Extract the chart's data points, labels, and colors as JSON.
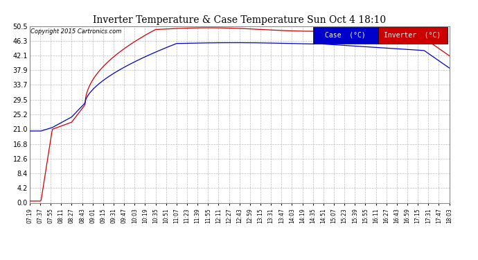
{
  "title": "Inverter Temperature & Case Temperature Sun Oct 4 18:10",
  "copyright": "Copyright 2015 Cartronics.com",
  "background_color": "#ffffff",
  "plot_bg_color": "#ffffff",
  "grid_color": "#aaaaaa",
  "ylim": [
    0.0,
    50.5
  ],
  "yticks": [
    0.0,
    4.2,
    8.4,
    12.6,
    16.8,
    21.0,
    25.2,
    29.5,
    33.7,
    37.9,
    42.1,
    46.3,
    50.5
  ],
  "case_color": "#0000cc",
  "inverter_color": "#cc0000",
  "legend_case_label": "Case  (°C)",
  "legend_inverter_label": "Inverter  (°C)",
  "legend_case_bg": "#0000cc",
  "legend_inverter_bg": "#cc0000",
  "xtick_labels": [
    "07:19",
    "07:37",
    "07:55",
    "08:11",
    "08:27",
    "08:43",
    "09:01",
    "09:15",
    "09:31",
    "09:47",
    "10:03",
    "10:19",
    "10:35",
    "10:51",
    "11:07",
    "11:23",
    "11:39",
    "11:55",
    "12:11",
    "12:27",
    "12:43",
    "12:59",
    "13:15",
    "13:31",
    "13:47",
    "14:03",
    "14:19",
    "14:35",
    "14:51",
    "15:07",
    "15:23",
    "15:39",
    "15:55",
    "16:11",
    "16:27",
    "16:43",
    "16:59",
    "17:15",
    "17:31",
    "17:47",
    "18:03"
  ]
}
